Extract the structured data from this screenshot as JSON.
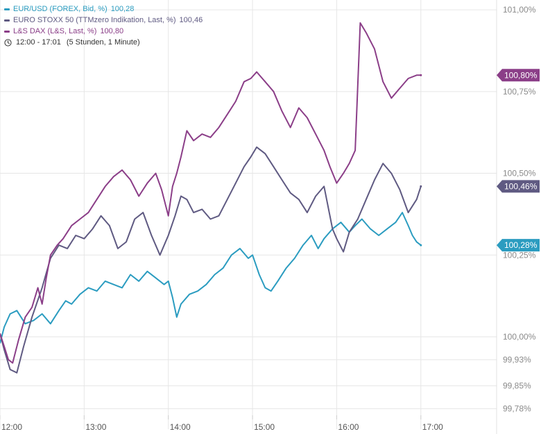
{
  "colors": {
    "eurusd": "#2B9CC0",
    "stoxx": "#5F5A82",
    "dax": "#8B3E88",
    "grid": "#e6e6e6",
    "axis_text": "#8a8a8a"
  },
  "legend": {
    "items": [
      {
        "label": "EUR/USD (FOREX, Bid, %)",
        "value": "100,28",
        "color": "#2B9CC0"
      },
      {
        "label": "EURO STOXX 50 (TTMzero Indikation, Last, %)",
        "value": "100,46",
        "color": "#5F5A82"
      },
      {
        "label": "L&S DAX (L&S, Last, %)",
        "value": "100,80",
        "color": "#8B3E88"
      }
    ],
    "time_range": "12:00 - 17:01",
    "period": "(5 Stunden, 1 Minute)"
  },
  "chart_data": {
    "type": "line",
    "x_unit": "time of day (hours)",
    "xlim": [
      12.0,
      17.9
    ],
    "ylim": [
      99.76,
      101.03
    ],
    "x_ticks": [
      {
        "label": "12:00",
        "value": 12.0
      },
      {
        "label": "13:00",
        "value": 13.0
      },
      {
        "label": "14:00",
        "value": 14.0
      },
      {
        "label": "15:00",
        "value": 15.0
      },
      {
        "label": "16:00",
        "value": 16.0
      },
      {
        "label": "17:00",
        "value": 17.0
      }
    ],
    "y_ticks": [
      {
        "label": "101,00%",
        "value": 101.0
      },
      {
        "label": "100,75%",
        "value": 100.75
      },
      {
        "label": "100,50%",
        "value": 100.5
      },
      {
        "label": "100,25%",
        "value": 100.25
      },
      {
        "label": "100,00%",
        "value": 100.0
      },
      {
        "label": "99,93%",
        "value": 99.93
      },
      {
        "label": "99,85%",
        "value": 99.85
      },
      {
        "label": "99,78%",
        "value": 99.78
      }
    ],
    "grid": true,
    "series": [
      {
        "name": "EUR/USD (FOREX, Bid, %)",
        "color": "#2B9CC0",
        "last_label": "100,28%",
        "last_value": 100.28,
        "points": [
          [
            12.0,
            99.98
          ],
          [
            12.05,
            100.03
          ],
          [
            12.12,
            100.07
          ],
          [
            12.2,
            100.08
          ],
          [
            12.3,
            100.04
          ],
          [
            12.4,
            100.05
          ],
          [
            12.5,
            100.07
          ],
          [
            12.6,
            100.04
          ],
          [
            12.7,
            100.08
          ],
          [
            12.78,
            100.11
          ],
          [
            12.85,
            100.1
          ],
          [
            12.95,
            100.13
          ],
          [
            13.05,
            100.15
          ],
          [
            13.15,
            100.14
          ],
          [
            13.25,
            100.17
          ],
          [
            13.35,
            100.16
          ],
          [
            13.45,
            100.15
          ],
          [
            13.55,
            100.19
          ],
          [
            13.65,
            100.17
          ],
          [
            13.75,
            100.2
          ],
          [
            13.85,
            100.18
          ],
          [
            13.95,
            100.16
          ],
          [
            14.0,
            100.17
          ],
          [
            14.05,
            100.12
          ],
          [
            14.1,
            100.06
          ],
          [
            14.15,
            100.1
          ],
          [
            14.25,
            100.13
          ],
          [
            14.35,
            100.14
          ],
          [
            14.45,
            100.16
          ],
          [
            14.55,
            100.19
          ],
          [
            14.65,
            100.21
          ],
          [
            14.75,
            100.25
          ],
          [
            14.85,
            100.27
          ],
          [
            14.95,
            100.24
          ],
          [
            15.0,
            100.25
          ],
          [
            15.08,
            100.19
          ],
          [
            15.15,
            100.15
          ],
          [
            15.22,
            100.14
          ],
          [
            15.3,
            100.17
          ],
          [
            15.4,
            100.21
          ],
          [
            15.5,
            100.24
          ],
          [
            15.6,
            100.28
          ],
          [
            15.7,
            100.31
          ],
          [
            15.78,
            100.27
          ],
          [
            15.85,
            100.3
          ],
          [
            15.95,
            100.33
          ],
          [
            16.05,
            100.35
          ],
          [
            16.15,
            100.32
          ],
          [
            16.22,
            100.34
          ],
          [
            16.3,
            100.36
          ],
          [
            16.4,
            100.33
          ],
          [
            16.5,
            100.31
          ],
          [
            16.6,
            100.33
          ],
          [
            16.7,
            100.35
          ],
          [
            16.78,
            100.38
          ],
          [
            16.85,
            100.34
          ],
          [
            16.9,
            100.31
          ],
          [
            16.95,
            100.29
          ],
          [
            17.0,
            100.28
          ]
        ]
      },
      {
        "name": "EURO STOXX 50 (TTMzero Indikation, Last, %)",
        "color": "#5F5A82",
        "last_label": "100,46%",
        "last_value": 100.46,
        "points": [
          [
            12.0,
            100.01
          ],
          [
            12.05,
            99.96
          ],
          [
            12.12,
            99.9
          ],
          [
            12.2,
            99.89
          ],
          [
            12.28,
            99.97
          ],
          [
            12.38,
            100.06
          ],
          [
            12.5,
            100.15
          ],
          [
            12.6,
            100.24
          ],
          [
            12.7,
            100.28
          ],
          [
            12.8,
            100.27
          ],
          [
            12.9,
            100.31
          ],
          [
            13.0,
            100.3
          ],
          [
            13.1,
            100.33
          ],
          [
            13.2,
            100.37
          ],
          [
            13.3,
            100.34
          ],
          [
            13.4,
            100.27
          ],
          [
            13.5,
            100.29
          ],
          [
            13.6,
            100.36
          ],
          [
            13.7,
            100.38
          ],
          [
            13.8,
            100.31
          ],
          [
            13.9,
            100.25
          ],
          [
            14.0,
            100.31
          ],
          [
            14.08,
            100.37
          ],
          [
            14.15,
            100.43
          ],
          [
            14.22,
            100.42
          ],
          [
            14.3,
            100.38
          ],
          [
            14.4,
            100.39
          ],
          [
            14.5,
            100.36
          ],
          [
            14.6,
            100.37
          ],
          [
            14.7,
            100.42
          ],
          [
            14.8,
            100.47
          ],
          [
            14.9,
            100.52
          ],
          [
            14.98,
            100.55
          ],
          [
            15.05,
            100.58
          ],
          [
            15.15,
            100.56
          ],
          [
            15.25,
            100.52
          ],
          [
            15.35,
            100.48
          ],
          [
            15.45,
            100.44
          ],
          [
            15.55,
            100.42
          ],
          [
            15.65,
            100.38
          ],
          [
            15.75,
            100.43
          ],
          [
            15.85,
            100.46
          ],
          [
            15.95,
            100.33
          ],
          [
            16.0,
            100.3
          ],
          [
            16.08,
            100.26
          ],
          [
            16.15,
            100.32
          ],
          [
            16.25,
            100.36
          ],
          [
            16.35,
            100.42
          ],
          [
            16.45,
            100.48
          ],
          [
            16.55,
            100.53
          ],
          [
            16.65,
            100.5
          ],
          [
            16.75,
            100.45
          ],
          [
            16.85,
            100.38
          ],
          [
            16.95,
            100.42
          ],
          [
            17.0,
            100.46
          ]
        ]
      },
      {
        "name": "L&S DAX (L&S, Last, %)",
        "color": "#8B3E88",
        "last_label": "100,80%",
        "last_value": 100.8,
        "points": [
          [
            12.0,
            100.01
          ],
          [
            12.05,
            99.97
          ],
          [
            12.1,
            99.93
          ],
          [
            12.15,
            99.92
          ],
          [
            12.22,
            99.99
          ],
          [
            12.3,
            100.06
          ],
          [
            12.38,
            100.09
          ],
          [
            12.45,
            100.15
          ],
          [
            12.5,
            100.1
          ],
          [
            12.55,
            100.18
          ],
          [
            12.6,
            100.25
          ],
          [
            12.68,
            100.28
          ],
          [
            12.75,
            100.3
          ],
          [
            12.85,
            100.34
          ],
          [
            12.95,
            100.36
          ],
          [
            13.05,
            100.38
          ],
          [
            13.15,
            100.42
          ],
          [
            13.25,
            100.46
          ],
          [
            13.35,
            100.49
          ],
          [
            13.45,
            100.51
          ],
          [
            13.55,
            100.48
          ],
          [
            13.65,
            100.43
          ],
          [
            13.75,
            100.47
          ],
          [
            13.85,
            100.5
          ],
          [
            13.92,
            100.45
          ],
          [
            14.0,
            100.37
          ],
          [
            14.05,
            100.46
          ],
          [
            14.1,
            100.5
          ],
          [
            14.15,
            100.55
          ],
          [
            14.22,
            100.63
          ],
          [
            14.3,
            100.6
          ],
          [
            14.4,
            100.62
          ],
          [
            14.5,
            100.61
          ],
          [
            14.6,
            100.64
          ],
          [
            14.7,
            100.68
          ],
          [
            14.8,
            100.72
          ],
          [
            14.9,
            100.78
          ],
          [
            14.98,
            100.79
          ],
          [
            15.05,
            100.81
          ],
          [
            15.15,
            100.78
          ],
          [
            15.25,
            100.75
          ],
          [
            15.35,
            100.69
          ],
          [
            15.45,
            100.64
          ],
          [
            15.55,
            100.7
          ],
          [
            15.65,
            100.67
          ],
          [
            15.75,
            100.62
          ],
          [
            15.85,
            100.57
          ],
          [
            15.92,
            100.52
          ],
          [
            16.0,
            100.47
          ],
          [
            16.08,
            100.5
          ],
          [
            16.15,
            100.53
          ],
          [
            16.22,
            100.57
          ],
          [
            16.28,
            100.96
          ],
          [
            16.35,
            100.93
          ],
          [
            16.45,
            100.88
          ],
          [
            16.55,
            100.78
          ],
          [
            16.65,
            100.73
          ],
          [
            16.75,
            100.76
          ],
          [
            16.85,
            100.79
          ],
          [
            16.95,
            100.8
          ],
          [
            17.0,
            100.8
          ]
        ]
      }
    ]
  }
}
